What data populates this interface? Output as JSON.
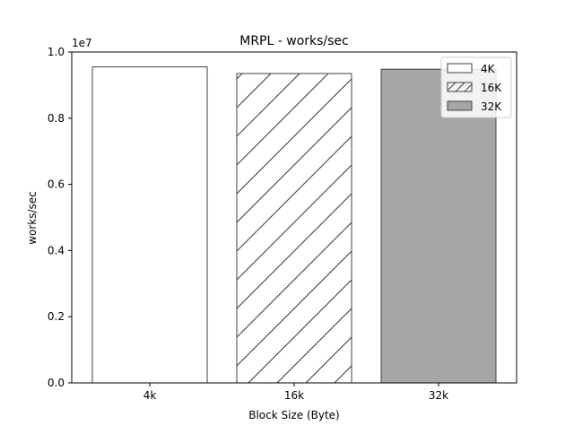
{
  "chart_data": {
    "type": "bar",
    "title": "MRPL - works/sec",
    "xlabel": "Block Size (Byte)",
    "ylabel": "works/sec",
    "categories": [
      "4k",
      "16k",
      "32k"
    ],
    "values": [
      9550000,
      9350000,
      9480000
    ],
    "ylim": [
      0,
      10000000
    ],
    "yticks": [
      0,
      2000000,
      4000000,
      6000000,
      8000000,
      10000000
    ],
    "ytick_labels": [
      "0.0",
      "0.2",
      "0.4",
      "0.6",
      "0.8",
      "1.0"
    ],
    "y_offset_label": "1e7",
    "grid": false,
    "legend": {
      "placement": "top-right",
      "entries": [
        "4K",
        "16K",
        "32K"
      ]
    },
    "bar_styles": [
      {
        "fill": "#ffffff",
        "hatch": "none"
      },
      {
        "fill": "#ffffff",
        "hatch": "diagonal"
      },
      {
        "fill": "#a6a6a6",
        "hatch": "none"
      }
    ],
    "edge_color": "#404040"
  }
}
